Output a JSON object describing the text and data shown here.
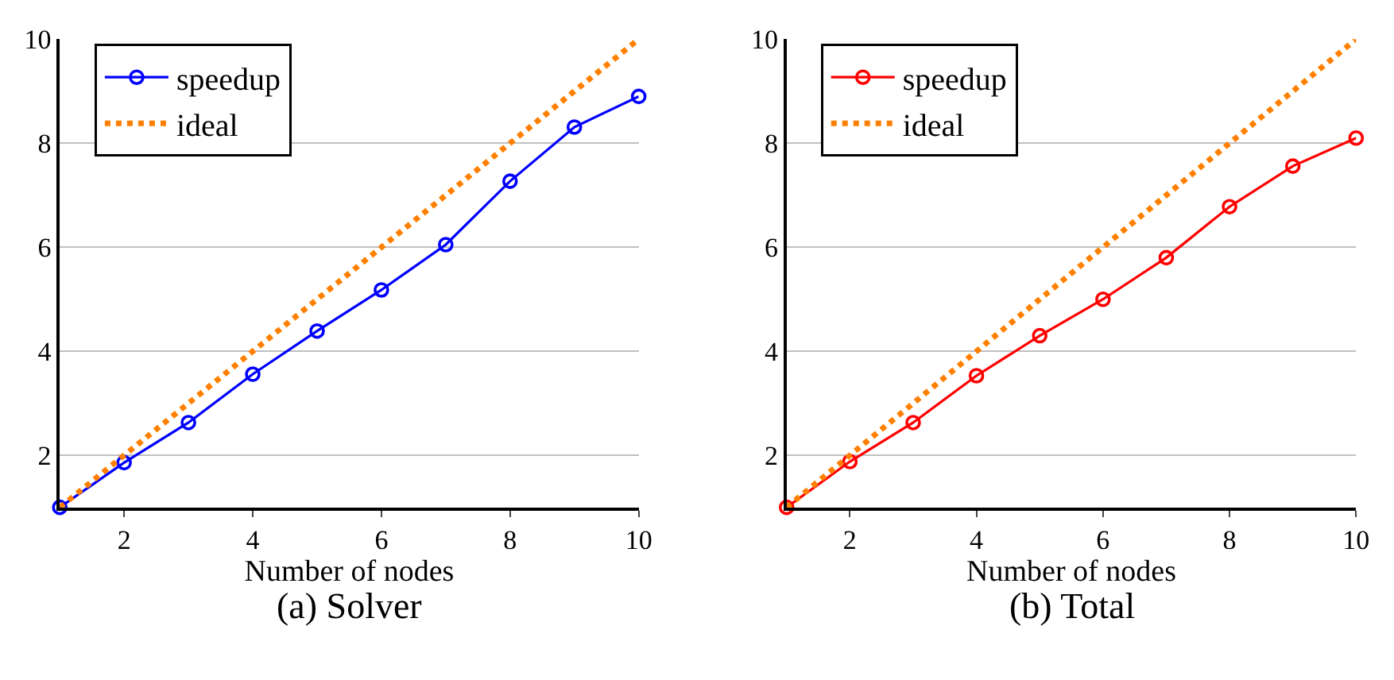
{
  "chart_data": [
    {
      "type": "line",
      "title": "(a) Solver",
      "xlabel": "Number of nodes",
      "x": [
        1,
        2,
        3,
        4,
        5,
        6,
        7,
        8,
        9,
        10
      ],
      "xlim": [
        1,
        10
      ],
      "xticks": [
        2,
        4,
        6,
        8,
        10
      ],
      "ylim": [
        1,
        10
      ],
      "yticks": [
        2,
        4,
        6,
        8,
        10
      ],
      "grid": "y",
      "legend": "top left",
      "series": [
        {
          "name": "speedup",
          "color": "#0000ff",
          "marker": "circle",
          "line_style": "solid",
          "values": [
            1,
            1.86,
            2.63,
            3.56,
            4.39,
            5.18,
            6.05,
            7.27,
            8.31,
            8.9
          ]
        },
        {
          "name": "ideal",
          "color": "#ff8000",
          "marker": "none",
          "line_style": "dotted",
          "values": [
            1,
            2,
            3,
            4,
            5,
            6,
            7,
            8,
            9,
            10
          ]
        }
      ]
    },
    {
      "type": "line",
      "title": "(b) Total",
      "xlabel": "Number of nodes",
      "x": [
        1,
        2,
        3,
        4,
        5,
        6,
        7,
        8,
        9,
        10
      ],
      "xlim": [
        1,
        10
      ],
      "xticks": [
        2,
        4,
        6,
        8,
        10
      ],
      "ylim": [
        1,
        10
      ],
      "yticks": [
        2,
        4,
        6,
        8,
        10
      ],
      "grid": "y",
      "legend": "top left",
      "series": [
        {
          "name": "speedup",
          "color": "#ff0000",
          "marker": "circle",
          "line_style": "solid",
          "values": [
            1,
            1.88,
            2.63,
            3.53,
            4.3,
            5.0,
            5.8,
            6.78,
            7.56,
            8.1
          ]
        },
        {
          "name": "ideal",
          "color": "#ff8000",
          "marker": "none",
          "line_style": "dotted",
          "values": [
            1,
            2,
            3,
            4,
            5,
            6,
            7,
            8,
            9,
            10
          ]
        }
      ]
    }
  ]
}
